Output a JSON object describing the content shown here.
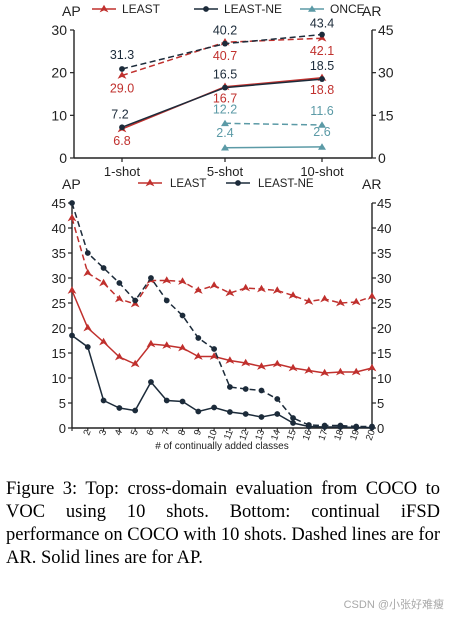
{
  "colors": {
    "least": "#c0302d",
    "least_ne": "#1c2b3a",
    "once": "#5b9aa6",
    "axis": "#222222"
  },
  "chart_data": [
    {
      "type": "line",
      "left_axis_title": "AP",
      "right_axis_title": "AR",
      "categories": [
        "1-shot",
        "5-shot",
        "10-shot"
      ],
      "ylim_left": [
        0,
        30
      ],
      "ylim_right": [
        0,
        45
      ],
      "left_ticks": [
        "0",
        "10",
        "20",
        "30"
      ],
      "right_ticks": [
        "0",
        "15",
        "30",
        "45"
      ],
      "legend": [
        "LEAST",
        "LEAST-NE",
        "ONCE"
      ],
      "series": [
        {
          "name": "LEAST",
          "metric": "AP",
          "style": "solid",
          "color_key": "least",
          "values": [
            6.8,
            16.7,
            18.8
          ],
          "labels": [
            "6.8",
            "16.7",
            "18.8"
          ]
        },
        {
          "name": "LEAST-NE",
          "metric": "AP",
          "style": "solid",
          "color_key": "least_ne",
          "values": [
            7.2,
            16.5,
            18.5
          ],
          "labels": [
            "7.2",
            "16.5",
            "18.5"
          ]
        },
        {
          "name": "ONCE",
          "metric": "AP",
          "style": "solid",
          "color_key": "once",
          "values": [
            null,
            2.4,
            2.6
          ],
          "labels": [
            "",
            "2.4",
            "2.6"
          ]
        },
        {
          "name": "LEAST",
          "metric": "AR",
          "style": "dashed",
          "color_key": "least",
          "values": [
            29.0,
            40.7,
            42.1
          ],
          "labels": [
            "29.0",
            "40.7",
            "42.1"
          ]
        },
        {
          "name": "LEAST-NE",
          "metric": "AR",
          "style": "dashed",
          "color_key": "least_ne",
          "values": [
            31.3,
            40.2,
            43.4
          ],
          "labels": [
            "31.3",
            "40.2",
            "43.4"
          ]
        },
        {
          "name": "ONCE",
          "metric": "AR",
          "style": "dashed",
          "color_key": "once",
          "values": [
            null,
            12.2,
            11.6
          ],
          "labels": [
            "",
            "12.2",
            "11.6"
          ]
        }
      ]
    },
    {
      "type": "line",
      "left_axis_title": "AP",
      "right_axis_title": "AR",
      "xlabel": "# of continually added classes",
      "x": [
        "1",
        "2",
        "3",
        "4",
        "5",
        "6",
        "7",
        "8",
        "9",
        "10",
        "11",
        "12",
        "13",
        "14",
        "15",
        "16",
        "17",
        "18",
        "19",
        "20"
      ],
      "ylim_left": [
        0,
        45
      ],
      "ylim_right": [
        0,
        45
      ],
      "left_ticks": [
        "0",
        "5",
        "10",
        "15",
        "20",
        "25",
        "30",
        "35",
        "40",
        "45"
      ],
      "right_ticks": [
        "0",
        "5",
        "10",
        "15",
        "20",
        "25",
        "30",
        "35",
        "40",
        "45"
      ],
      "legend": [
        "LEAST",
        "LEAST-NE"
      ],
      "series": [
        {
          "name": "LEAST",
          "metric": "AP",
          "style": "solid",
          "color_key": "least",
          "values": [
            27.5,
            20.0,
            17.2,
            14.2,
            12.8,
            16.8,
            16.5,
            16.0,
            14.3,
            14.3,
            13.5,
            13.0,
            12.3,
            12.8,
            12.0,
            11.5,
            11.0,
            11.2,
            11.2,
            12.0
          ]
        },
        {
          "name": "LEAST-NE",
          "metric": "AP",
          "style": "solid",
          "color_key": "least_ne",
          "values": [
            18.5,
            16.2,
            5.5,
            4.0,
            3.5,
            9.2,
            5.5,
            5.3,
            3.3,
            4.1,
            3.2,
            2.8,
            2.2,
            2.8,
            1.0,
            0.3,
            0.2,
            0.2,
            0.1,
            0.1
          ]
        },
        {
          "name": "LEAST",
          "metric": "AR",
          "style": "dashed",
          "color_key": "least",
          "values": [
            42.0,
            31.0,
            29.0,
            25.8,
            24.8,
            29.5,
            29.5,
            29.3,
            27.5,
            28.5,
            27.0,
            28.0,
            27.8,
            27.5,
            26.5,
            25.3,
            25.8,
            25.0,
            25.2,
            26.3
          ]
        },
        {
          "name": "LEAST-NE",
          "metric": "AR",
          "style": "dashed",
          "color_key": "least_ne",
          "values": [
            45.0,
            35.0,
            32.0,
            29.0,
            25.5,
            30.0,
            25.5,
            22.5,
            18.0,
            15.8,
            8.2,
            7.8,
            7.5,
            5.8,
            2.0,
            0.6,
            0.5,
            0.5,
            0.3,
            0.3
          ]
        }
      ]
    }
  ],
  "caption": "Figure 3: Top: cross-domain evaluation from COCO to VOC using 10 shots. Bottom: continual iFSD performance on COCO with 10 shots.  Dashed lines are for AR. Solid lines are for AP.",
  "watermark": "CSDN @小张好难瘦"
}
